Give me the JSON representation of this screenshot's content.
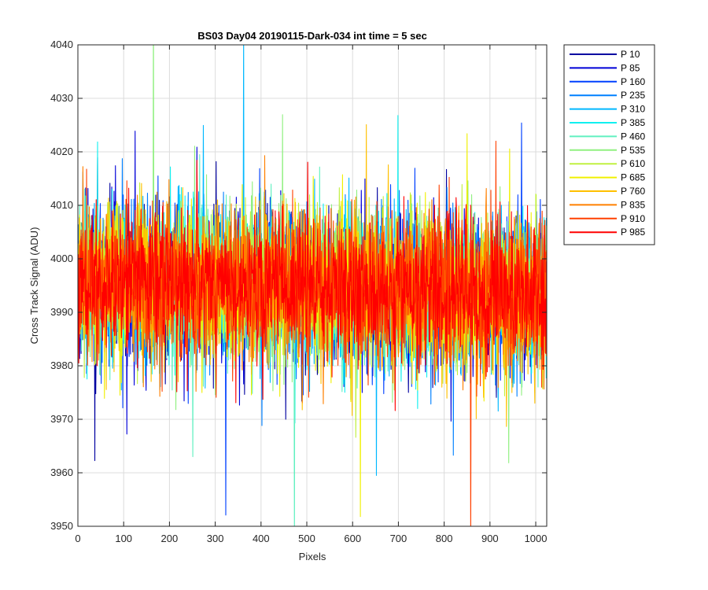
{
  "chart_data": {
    "type": "line",
    "title": "BS03 Day04 20190115-Dark-034 int time = 5 sec",
    "xlabel": "Pixels",
    "ylabel": "Cross Track Signal (ADU)",
    "xlim": [
      0,
      1024
    ],
    "ylim": [
      3950,
      4040
    ],
    "xticks": [
      0,
      100,
      200,
      300,
      400,
      500,
      600,
      700,
      800,
      900,
      1000
    ],
    "yticks": [
      3950,
      3960,
      3970,
      3980,
      3990,
      4000,
      4010,
      4020,
      4030,
      4040
    ],
    "grid": true,
    "legend_position": "outside-top-right",
    "n_points": 1024,
    "series": [
      {
        "name": "P 10",
        "color": "#0000A0",
        "mean_start": 3996,
        "mean_end": 3993,
        "spread": 8,
        "seed": 11
      },
      {
        "name": "P 85",
        "color": "#0000D8",
        "mean_start": 3996,
        "mean_end": 3993,
        "spread": 8,
        "seed": 23
      },
      {
        "name": "P 160",
        "color": "#0040FF",
        "mean_start": 3996,
        "mean_end": 3993,
        "spread": 8,
        "seed": 37
      },
      {
        "name": "P 235",
        "color": "#0080FF",
        "mean_start": 3996,
        "mean_end": 3993,
        "spread": 8,
        "seed": 41
      },
      {
        "name": "P 310",
        "color": "#00B8FF",
        "mean_start": 3996,
        "mean_end": 3993,
        "spread": 8,
        "seed": 53
      },
      {
        "name": "P 385",
        "color": "#10F0F0",
        "mean_start": 3996,
        "mean_end": 3993,
        "spread": 8,
        "seed": 67
      },
      {
        "name": "P 460",
        "color": "#60F0C0",
        "mean_start": 3996,
        "mean_end": 3993,
        "spread": 8,
        "seed": 71
      },
      {
        "name": "P 535",
        "color": "#90F080",
        "mean_start": 3996,
        "mean_end": 3993,
        "spread": 8,
        "seed": 83
      },
      {
        "name": "P 610",
        "color": "#C0F040",
        "mean_start": 3996,
        "mean_end": 3993,
        "spread": 8,
        "seed": 97
      },
      {
        "name": "P 685",
        "color": "#F0F000",
        "mean_start": 3996,
        "mean_end": 3993,
        "spread": 8,
        "seed": 101
      },
      {
        "name": "P 760",
        "color": "#FFC000",
        "mean_start": 3996,
        "mean_end": 3993,
        "spread": 8,
        "seed": 113
      },
      {
        "name": "P 835",
        "color": "#FF8000",
        "mean_start": 3996,
        "mean_end": 3993,
        "spread": 8,
        "seed": 127
      },
      {
        "name": "P 910",
        "color": "#FF4000",
        "mean_start": 3996,
        "mean_end": 3993,
        "spread": 8,
        "seed": 131
      },
      {
        "name": "P 985",
        "color": "#FF0000",
        "mean_start": 3996,
        "mean_end": 3993,
        "spread": 8,
        "seed": 149
      }
    ]
  }
}
